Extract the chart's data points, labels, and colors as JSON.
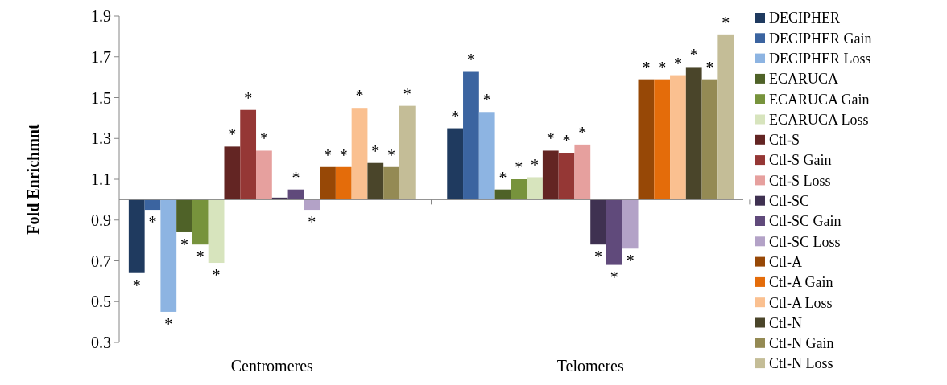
{
  "chart_data": {
    "type": "bar",
    "ylabel": "Fold Enrichmnt",
    "categories": [
      "Centromeres",
      "Telomeres"
    ],
    "ylim": [
      0.3,
      1.9
    ],
    "yticks": [
      0.3,
      0.5,
      0.7,
      0.9,
      1.1,
      1.3,
      1.5,
      1.7,
      1.9
    ],
    "grid": false,
    "ref_lines": [
      {
        "axis": "y",
        "value": 1,
        "color": "#868686"
      }
    ],
    "legend": "right",
    "series": [
      {
        "name": "DECIPHER",
        "color": "#1f3a5f",
        "base": [
          1,
          1
        ],
        "values": [
          -0.36,
          0.35
        ],
        "value_labels": [
          "*",
          "*"
        ]
      },
      {
        "name": "DECIPHER Gain",
        "color": "#3b64a0",
        "base": [
          1,
          1
        ],
        "values": [
          -0.05,
          0.63
        ],
        "value_labels": [
          "*",
          "*"
        ]
      },
      {
        "name": "DECIPHER Loss",
        "color": "#8db4e2",
        "base": [
          1,
          1
        ],
        "values": [
          -0.55,
          0.43
        ],
        "value_labels": [
          "*",
          "*"
        ]
      },
      {
        "name": "ECARUCA",
        "color": "#4f6228",
        "base": [
          1,
          1
        ],
        "values": [
          -0.16,
          0.05
        ],
        "value_labels": [
          "*",
          "*"
        ]
      },
      {
        "name": "ECARUCA Gain",
        "color": "#77933c",
        "base": [
          1,
          1
        ],
        "values": [
          -0.22,
          0.1
        ],
        "value_labels": [
          "*",
          "*"
        ]
      },
      {
        "name": "ECARUCA Loss",
        "color": "#d7e4bd",
        "base": [
          1,
          1
        ],
        "values": [
          -0.31,
          0.11
        ],
        "value_labels": [
          "*",
          "*"
        ]
      },
      {
        "name": "Ctl-S",
        "color": "#632523",
        "base": [
          1,
          1
        ],
        "values": [
          0.26,
          0.24
        ],
        "value_labels": [
          "*",
          "*"
        ]
      },
      {
        "name": "Ctl-S Gain",
        "color": "#953735",
        "base": [
          1,
          1
        ],
        "values": [
          0.44,
          0.23
        ],
        "value_labels": [
          "*",
          "*"
        ]
      },
      {
        "name": "Ctl-S Loss",
        "color": "#e6a09e",
        "base": [
          1,
          1
        ],
        "values": [
          0.24,
          0.27
        ],
        "value_labels": [
          "*",
          "*"
        ]
      },
      {
        "name": "Ctl-SC",
        "color": "#3f3151",
        "base": [
          1,
          1
        ],
        "values": [
          0.01,
          -0.22
        ],
        "value_labels": [
          null,
          "*"
        ]
      },
      {
        "name": "Ctl-SC Gain",
        "color": "#604a7b",
        "base": [
          1,
          1
        ],
        "values": [
          0.05,
          -0.32
        ],
        "value_labels": [
          "*",
          "*"
        ]
      },
      {
        "name": "Ctl-SC Loss",
        "color": "#b3a2c7",
        "base": [
          1,
          1
        ],
        "values": [
          -0.05,
          -0.24
        ],
        "value_labels": [
          "*",
          "*"
        ]
      },
      {
        "name": "Ctl-A",
        "color": "#974806",
        "base": [
          1,
          1
        ],
        "values": [
          0.16,
          0.59
        ],
        "value_labels": [
          "*",
          "*"
        ]
      },
      {
        "name": "Ctl-A Gain",
        "color": "#e46c0a",
        "base": [
          1,
          1
        ],
        "values": [
          0.16,
          0.59
        ],
        "value_labels": [
          "*",
          "*"
        ]
      },
      {
        "name": "Ctl-A Loss",
        "color": "#fac090",
        "base": [
          1,
          1
        ],
        "values": [
          0.45,
          0.61
        ],
        "value_labels": [
          "*",
          "*"
        ]
      },
      {
        "name": "Ctl-N",
        "color": "#4a452a",
        "base": [
          1,
          1
        ],
        "values": [
          0.18,
          0.65
        ],
        "value_labels": [
          "*",
          "*"
        ]
      },
      {
        "name": "Ctl-N Gain",
        "color": "#948a54",
        "base": [
          1,
          1
        ],
        "values": [
          0.16,
          0.59
        ],
        "value_labels": [
          "*",
          "*"
        ]
      },
      {
        "name": "Ctl-N Loss",
        "color": "#c4bd97",
        "base": [
          1,
          1
        ],
        "values": [
          0.46,
          0.81
        ],
        "value_labels": [
          "*",
          "*"
        ]
      }
    ]
  }
}
